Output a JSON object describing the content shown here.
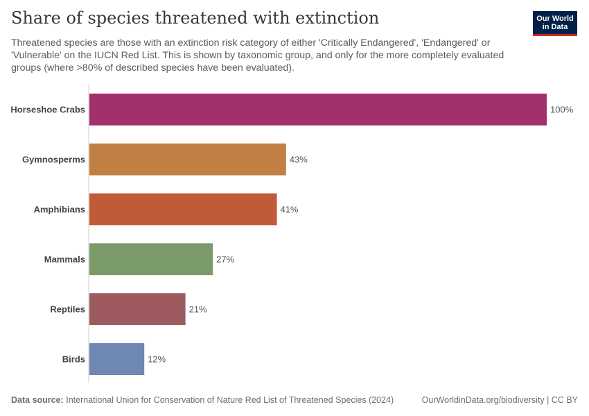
{
  "header": {
    "title": "Share of species threatened with extinction",
    "subtitle": "Threatened species are those with an extinction risk category of either 'Critically Endangered', 'Endangered' or 'Vulnerable' on the IUCN Red List. This is shown by taxonomic group, and only for the more completely evaluated groups (where >80% of described species have been evaluated).",
    "logo_line1": "Our World",
    "logo_line2": "in Data"
  },
  "chart_data": {
    "type": "bar",
    "orientation": "horizontal",
    "categories": [
      "Horseshoe Crabs",
      "Gymnosperms",
      "Amphibians",
      "Mammals",
      "Reptiles",
      "Birds"
    ],
    "values": [
      100,
      43,
      41,
      27,
      21,
      12
    ],
    "value_labels": [
      "100%",
      "43%",
      "41%",
      "27%",
      "21%",
      "12%"
    ],
    "colors": [
      "#a2306b",
      "#c17f43",
      "#c05a38",
      "#7b9a69",
      "#9d5b60",
      "#6f87b3"
    ],
    "xlim": [
      0,
      100
    ],
    "grid": false
  },
  "footer": {
    "source_label": "Data source:",
    "source_text": "International Union for Conservation of Nature Red List of Threatened Species (2024)",
    "attribution": "OurWorldinData.org/biodiversity | CC BY"
  }
}
